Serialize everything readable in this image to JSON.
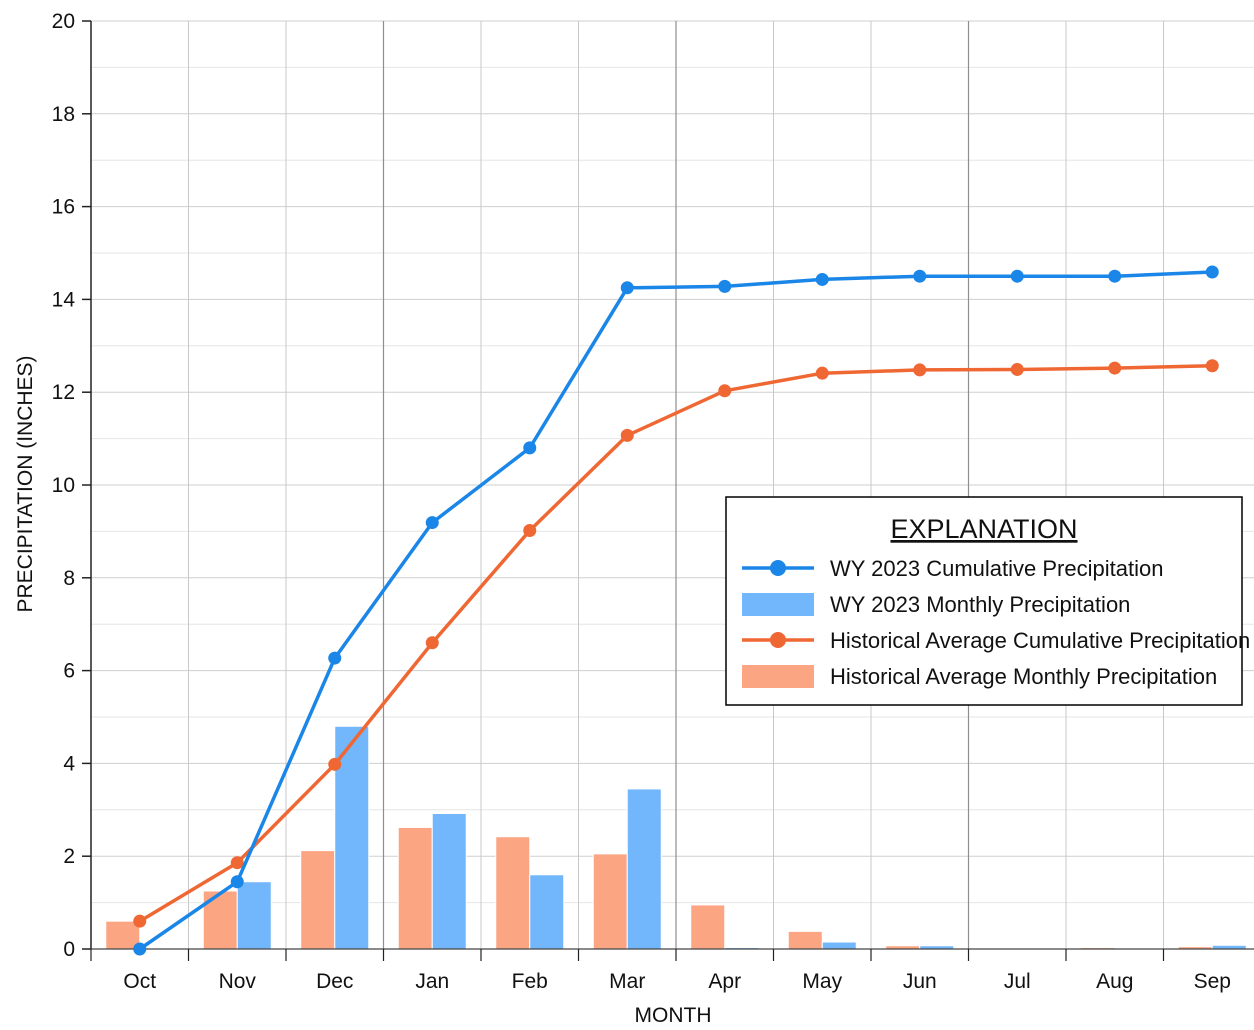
{
  "chart_data": {
    "type": "bar",
    "xlabel": "MONTH",
    "ylabel": "PRECIPITATION (INCHES)",
    "ylim": [
      0,
      20
    ],
    "yticks": [
      0,
      2,
      4,
      6,
      8,
      10,
      12,
      14,
      16,
      18,
      20
    ],
    "categories": [
      "Oct",
      "Nov",
      "Dec",
      "Jan",
      "Feb",
      "Mar",
      "Apr",
      "May",
      "Jun",
      "Jul",
      "Aug",
      "Sep"
    ],
    "grid": true,
    "legend": {
      "title": "EXPLANATION",
      "placement": "right",
      "entries": [
        {
          "label": "WY 2023 Cumulative Precipitation",
          "kind": "line",
          "color": "#1a86e8"
        },
        {
          "label": "WY 2023 Monthly Precipitation",
          "kind": "bar",
          "color": "#72b6fb"
        },
        {
          "label": "Historical Average Cumulative Precipitation",
          "kind": "line",
          "color": "#ef6733"
        },
        {
          "label": "Historical Average Monthly Precipitation",
          "kind": "bar",
          "color": "#fba583"
        }
      ]
    },
    "bars_hist": {
      "name": "Historical Average Monthly Precipitation",
      "color": "#fba583",
      "values": [
        0.6,
        1.25,
        2.12,
        2.62,
        2.42,
        2.05,
        0.95,
        0.38,
        0.07,
        0.02,
        0.03,
        0.05
      ]
    },
    "bars_wy": {
      "name": "WY 2023 Monthly Precipitation",
      "color": "#72b6fb",
      "values": [
        0.0,
        1.45,
        4.8,
        2.92,
        1.6,
        3.45,
        0.03,
        0.15,
        0.07,
        0.0,
        0.0,
        0.08
      ]
    },
    "cum_wy": {
      "name": "WY 2023 Cumulative Precipitation",
      "color": "#1a86e8",
      "values": [
        0.0,
        1.45,
        6.27,
        9.19,
        10.8,
        14.25,
        14.28,
        14.43,
        14.5,
        14.5,
        14.5,
        14.59
      ]
    },
    "cum_hist": {
      "name": "Historical Average Cumulative Precipitation",
      "color": "#ef6733",
      "values": [
        0.6,
        1.86,
        3.98,
        6.6,
        9.02,
        11.07,
        12.03,
        12.41,
        12.48,
        12.49,
        12.52,
        12.57
      ]
    }
  }
}
